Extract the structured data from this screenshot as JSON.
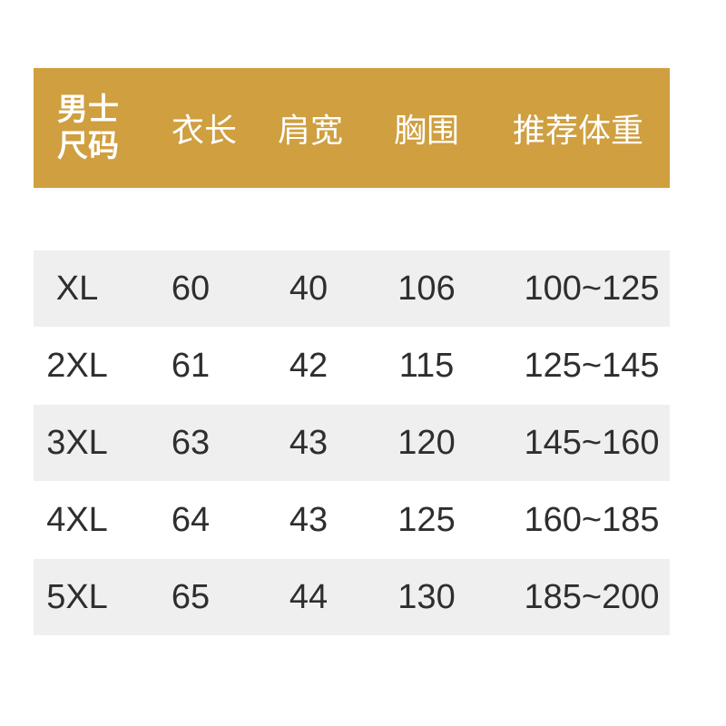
{
  "header": {
    "size_line1": "男士",
    "size_line2": "尺码",
    "columns": [
      "衣长",
      "肩宽",
      "胸围",
      "推荐体重"
    ]
  },
  "colors": {
    "header_bg": "#cf9f40",
    "stripe": "#efefef"
  },
  "rows": [
    {
      "size": "XL",
      "length": "60",
      "shoulder": "40",
      "chest": "106",
      "weight": "100~125"
    },
    {
      "size": "2XL",
      "length": "61",
      "shoulder": "42",
      "chest": "115",
      "weight": "125~145"
    },
    {
      "size": "3XL",
      "length": "63",
      "shoulder": "43",
      "chest": "120",
      "weight": "145~160"
    },
    {
      "size": "4XL",
      "length": "64",
      "shoulder": "43",
      "chest": "125",
      "weight": "160~185"
    },
    {
      "size": "5XL",
      "length": "65",
      "shoulder": "44",
      "chest": "130",
      "weight": "185~200"
    }
  ]
}
